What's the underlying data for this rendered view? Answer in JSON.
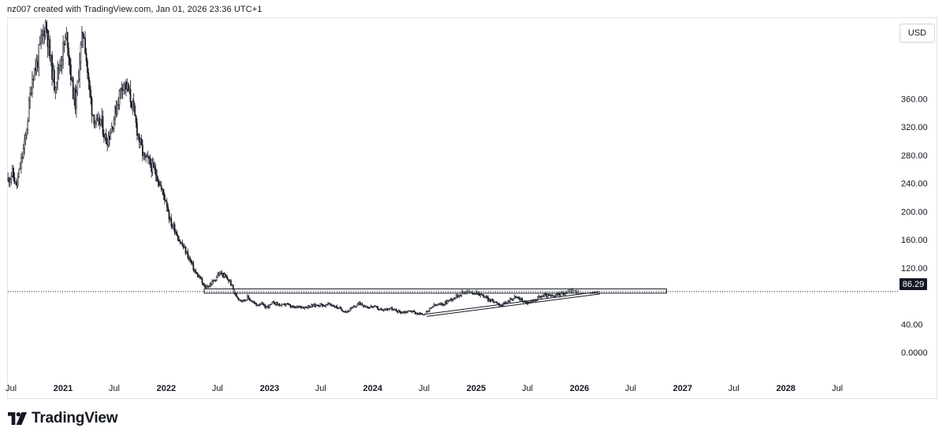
{
  "header": {
    "attribution": "nz007 created with TradingView.com, Jan 01, 2026 23:36 UTC+1"
  },
  "currency": "USD",
  "price_badge": "86.29",
  "brand": {
    "name": "TradingView"
  },
  "colors": {
    "candle": "#131722",
    "grid": "#e0e3eb",
    "price_line": "#131722",
    "badge_bg": "#131722"
  },
  "chart_data": {
    "type": "candlestick",
    "title": "",
    "currency": "USD",
    "y_ticks": [
      "360.00",
      "320.00",
      "280.00",
      "240.00",
      "200.00",
      "160.00",
      "120.00",
      "40.00",
      "0.0000"
    ],
    "y_tick_values": [
      360,
      320,
      280,
      240,
      200,
      160,
      120,
      40,
      0
    ],
    "x_ticks": [
      {
        "label": "Jul",
        "date": "2020-07",
        "year": false
      },
      {
        "label": "2021",
        "date": "2021-01",
        "year": true
      },
      {
        "label": "Jul",
        "date": "2021-07",
        "year": false
      },
      {
        "label": "2022",
        "date": "2022-01",
        "year": true
      },
      {
        "label": "Jul",
        "date": "2022-07",
        "year": false
      },
      {
        "label": "2023",
        "date": "2023-01",
        "year": true
      },
      {
        "label": "Jul",
        "date": "2023-07",
        "year": false
      },
      {
        "label": "2024",
        "date": "2024-01",
        "year": true
      },
      {
        "label": "Jul",
        "date": "2024-07",
        "year": false
      },
      {
        "label": "2025",
        "date": "2025-01",
        "year": true
      },
      {
        "label": "Jul",
        "date": "2025-07",
        "year": false
      },
      {
        "label": "2026",
        "date": "2026-01",
        "year": true
      },
      {
        "label": "Jul",
        "date": "2026-07",
        "year": false
      },
      {
        "label": "2027",
        "date": "2027-01",
        "year": true
      },
      {
        "label": "Jul",
        "date": "2027-07",
        "year": false
      },
      {
        "label": "2028",
        "date": "2028-01",
        "year": true
      },
      {
        "label": "Jul",
        "date": "2028-07",
        "year": false
      }
    ],
    "last_price": 86.29,
    "price_series": [
      [
        "2020-06-20",
        245
      ],
      [
        "2020-07-05",
        255
      ],
      [
        "2020-07-20",
        235
      ],
      [
        "2020-08-05",
        270
      ],
      [
        "2020-08-20",
        300
      ],
      [
        "2020-09-05",
        360
      ],
      [
        "2020-09-15",
        395
      ],
      [
        "2020-10-01",
        410
      ],
      [
        "2020-10-15",
        440
      ],
      [
        "2020-11-01",
        470
      ],
      [
        "2020-11-15",
        420
      ],
      [
        "2020-12-01",
        380
      ],
      [
        "2020-12-15",
        400
      ],
      [
        "2021-01-01",
        430
      ],
      [
        "2021-01-15",
        450
      ],
      [
        "2021-02-01",
        380
      ],
      [
        "2021-02-15",
        350
      ],
      [
        "2021-03-01",
        420
      ],
      [
        "2021-03-15",
        460
      ],
      [
        "2021-04-01",
        380
      ],
      [
        "2021-04-15",
        340
      ],
      [
        "2021-05-01",
        320
      ],
      [
        "2021-05-15",
        330
      ],
      [
        "2021-06-01",
        300
      ],
      [
        "2021-06-15",
        310
      ],
      [
        "2021-07-01",
        335
      ],
      [
        "2021-07-15",
        360
      ],
      [
        "2021-08-01",
        385
      ],
      [
        "2021-08-15",
        375
      ],
      [
        "2021-09-01",
        355
      ],
      [
        "2021-09-15",
        325
      ],
      [
        "2021-10-01",
        295
      ],
      [
        "2021-10-15",
        275
      ],
      [
        "2021-11-01",
        270
      ],
      [
        "2021-11-15",
        260
      ],
      [
        "2021-12-01",
        250
      ],
      [
        "2021-12-15",
        230
      ],
      [
        "2022-01-01",
        215
      ],
      [
        "2022-01-15",
        185
      ],
      [
        "2022-02-01",
        175
      ],
      [
        "2022-02-15",
        160
      ],
      [
        "2022-03-01",
        150
      ],
      [
        "2022-03-15",
        140
      ],
      [
        "2022-04-01",
        125
      ],
      [
        "2022-04-15",
        112
      ],
      [
        "2022-05-01",
        105
      ],
      [
        "2022-05-15",
        92
      ],
      [
        "2022-06-01",
        95
      ],
      [
        "2022-06-15",
        100
      ],
      [
        "2022-07-01",
        110
      ],
      [
        "2022-07-15",
        112
      ],
      [
        "2022-08-01",
        105
      ],
      [
        "2022-08-15",
        100
      ],
      [
        "2022-09-01",
        82
      ],
      [
        "2022-09-15",
        76
      ],
      [
        "2022-10-01",
        73
      ],
      [
        "2022-10-15",
        78
      ],
      [
        "2022-11-01",
        72
      ],
      [
        "2022-11-15",
        67
      ],
      [
        "2022-12-01",
        70
      ],
      [
        "2022-12-15",
        64
      ],
      [
        "2023-01-01",
        66
      ],
      [
        "2023-01-15",
        71
      ],
      [
        "2023-02-01",
        68
      ],
      [
        "2023-02-15",
        66
      ],
      [
        "2023-03-01",
        69
      ],
      [
        "2023-03-15",
        65
      ],
      [
        "2023-04-01",
        63
      ],
      [
        "2023-04-15",
        66
      ],
      [
        "2023-05-01",
        64
      ],
      [
        "2023-05-15",
        65
      ],
      [
        "2023-06-01",
        66
      ],
      [
        "2023-06-15",
        67
      ],
      [
        "2023-07-01",
        68
      ],
      [
        "2023-07-15",
        66
      ],
      [
        "2023-08-01",
        69
      ],
      [
        "2023-08-15",
        66
      ],
      [
        "2023-09-01",
        63
      ],
      [
        "2023-09-15",
        60
      ],
      [
        "2023-10-01",
        58
      ],
      [
        "2023-10-15",
        61
      ],
      [
        "2023-11-01",
        66
      ],
      [
        "2023-11-15",
        70
      ],
      [
        "2023-12-01",
        67
      ],
      [
        "2023-12-15",
        64
      ],
      [
        "2024-01-01",
        65
      ],
      [
        "2024-01-15",
        63
      ],
      [
        "2024-02-01",
        60
      ],
      [
        "2024-02-15",
        61
      ],
      [
        "2024-03-01",
        63
      ],
      [
        "2024-03-15",
        60
      ],
      [
        "2024-04-01",
        58
      ],
      [
        "2024-04-15",
        57
      ],
      [
        "2024-05-01",
        58
      ],
      [
        "2024-05-15",
        59
      ],
      [
        "2024-06-01",
        56
      ],
      [
        "2024-06-15",
        54
      ],
      [
        "2024-07-01",
        55
      ],
      [
        "2024-07-15",
        58
      ],
      [
        "2024-08-01",
        66
      ],
      [
        "2024-08-15",
        67
      ],
      [
        "2024-09-01",
        68
      ],
      [
        "2024-09-15",
        71
      ],
      [
        "2024-10-01",
        75
      ],
      [
        "2024-10-15",
        78
      ],
      [
        "2024-11-01",
        82
      ],
      [
        "2024-11-15",
        86
      ],
      [
        "2024-12-01",
        87
      ],
      [
        "2024-12-15",
        84
      ],
      [
        "2025-01-01",
        86
      ],
      [
        "2025-01-15",
        82
      ],
      [
        "2025-02-01",
        79
      ],
      [
        "2025-02-15",
        74
      ],
      [
        "2025-03-01",
        73
      ],
      [
        "2025-03-15",
        71
      ],
      [
        "2025-04-01",
        66
      ],
      [
        "2025-04-15",
        70
      ],
      [
        "2025-05-01",
        75
      ],
      [
        "2025-05-15",
        78
      ],
      [
        "2025-06-01",
        77
      ],
      [
        "2025-06-15",
        73
      ],
      [
        "2025-07-01",
        70
      ],
      [
        "2025-07-15",
        71
      ],
      [
        "2025-08-01",
        76
      ],
      [
        "2025-08-15",
        79
      ],
      [
        "2025-09-01",
        81
      ],
      [
        "2025-09-15",
        80
      ],
      [
        "2025-10-01",
        79
      ],
      [
        "2025-10-15",
        82
      ],
      [
        "2025-11-01",
        84
      ],
      [
        "2025-11-15",
        86
      ],
      [
        "2025-12-01",
        88
      ],
      [
        "2025-12-15",
        87
      ],
      [
        "2026-01-01",
        86.29
      ]
    ],
    "drawings": [
      {
        "type": "rectangle",
        "from_date": "2022-05-15",
        "to_date": "2026-11-05",
        "price_low": 84,
        "price_high": 90
      },
      {
        "type": "trendline",
        "from": [
          "2024-07-10",
          51
        ],
        "to": [
          "2026-03-15",
          83
        ]
      }
    ]
  }
}
